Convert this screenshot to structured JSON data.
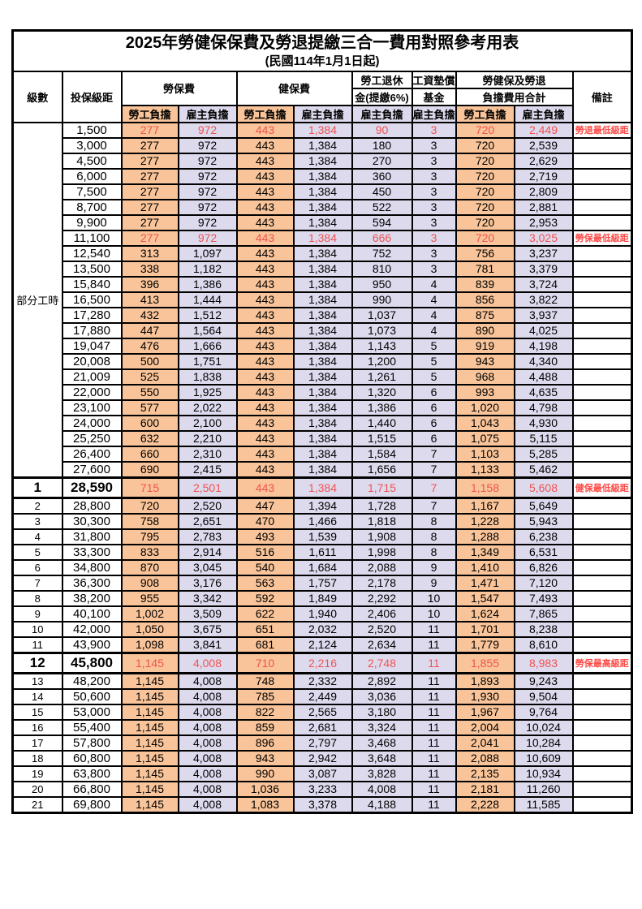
{
  "title": "2025年勞健保保費及勞退提繳三合一費用對照參考用表",
  "subtitle": "(民國114年1月1日起)",
  "colors": {
    "employee_fill": "#F9C499",
    "employer_fill": "#DEDAEE",
    "highlight_red": "#EF5350",
    "remark_red": "#FF4B47",
    "border": "#000000"
  },
  "header": {
    "level": "級數",
    "bracket": "投保級距",
    "labor_ins": "勞保費",
    "health_ins": "健保費",
    "pension_top": "勞工退休",
    "pension_bottom": "金(提繳6%)",
    "wage_fund_top": "工資墊償",
    "wage_fund_bottom": "基金",
    "total_top": "勞健保及勞退",
    "total_bottom": "負擔費用合計",
    "remark": "備註",
    "employee": "勞工負擔",
    "employer": "雇主負擔"
  },
  "part_time_label": "部分工時",
  "part_time_rowspan": 23,
  "rows": [
    {
      "level": null,
      "bracket": "1,500",
      "values": [
        "277",
        "972",
        "443",
        "1,384",
        "90",
        "3",
        "720",
        "2,449"
      ],
      "remark": "勞退最低級距",
      "style": "red"
    },
    {
      "level": null,
      "bracket": "3,000",
      "values": [
        "277",
        "972",
        "443",
        "1,384",
        "180",
        "3",
        "720",
        "2,539"
      ],
      "remark": "",
      "style": ""
    },
    {
      "level": null,
      "bracket": "4,500",
      "values": [
        "277",
        "972",
        "443",
        "1,384",
        "270",
        "3",
        "720",
        "2,629"
      ],
      "remark": "",
      "style": ""
    },
    {
      "level": null,
      "bracket": "6,000",
      "values": [
        "277",
        "972",
        "443",
        "1,384",
        "360",
        "3",
        "720",
        "2,719"
      ],
      "remark": "",
      "style": ""
    },
    {
      "level": null,
      "bracket": "7,500",
      "values": [
        "277",
        "972",
        "443",
        "1,384",
        "450",
        "3",
        "720",
        "2,809"
      ],
      "remark": "",
      "style": ""
    },
    {
      "level": null,
      "bracket": "8,700",
      "values": [
        "277",
        "972",
        "443",
        "1,384",
        "522",
        "3",
        "720",
        "2,881"
      ],
      "remark": "",
      "style": ""
    },
    {
      "level": null,
      "bracket": "9,900",
      "values": [
        "277",
        "972",
        "443",
        "1,384",
        "594",
        "3",
        "720",
        "2,953"
      ],
      "remark": "",
      "style": ""
    },
    {
      "level": null,
      "bracket": "11,100",
      "values": [
        "277",
        "972",
        "443",
        "1,384",
        "666",
        "3",
        "720",
        "3,025"
      ],
      "remark": "勞保最低級距",
      "style": "red"
    },
    {
      "level": null,
      "bracket": "12,540",
      "values": [
        "313",
        "1,097",
        "443",
        "1,384",
        "752",
        "3",
        "756",
        "3,237"
      ],
      "remark": "",
      "style": ""
    },
    {
      "level": null,
      "bracket": "13,500",
      "values": [
        "338",
        "1,182",
        "443",
        "1,384",
        "810",
        "3",
        "781",
        "3,379"
      ],
      "remark": "",
      "style": ""
    },
    {
      "level": null,
      "bracket": "15,840",
      "values": [
        "396",
        "1,386",
        "443",
        "1,384",
        "950",
        "4",
        "839",
        "3,724"
      ],
      "remark": "",
      "style": ""
    },
    {
      "level": null,
      "bracket": "16,500",
      "values": [
        "413",
        "1,444",
        "443",
        "1,384",
        "990",
        "4",
        "856",
        "3,822"
      ],
      "remark": "",
      "style": ""
    },
    {
      "level": null,
      "bracket": "17,280",
      "values": [
        "432",
        "1,512",
        "443",
        "1,384",
        "1,037",
        "4",
        "875",
        "3,937"
      ],
      "remark": "",
      "style": ""
    },
    {
      "level": null,
      "bracket": "17,880",
      "values": [
        "447",
        "1,564",
        "443",
        "1,384",
        "1,073",
        "4",
        "890",
        "4,025"
      ],
      "remark": "",
      "style": ""
    },
    {
      "level": null,
      "bracket": "19,047",
      "values": [
        "476",
        "1,666",
        "443",
        "1,384",
        "1,143",
        "5",
        "919",
        "4,198"
      ],
      "remark": "",
      "style": ""
    },
    {
      "level": null,
      "bracket": "20,008",
      "values": [
        "500",
        "1,751",
        "443",
        "1,384",
        "1,200",
        "5",
        "943",
        "4,340"
      ],
      "remark": "",
      "style": ""
    },
    {
      "level": null,
      "bracket": "21,009",
      "values": [
        "525",
        "1,838",
        "443",
        "1,384",
        "1,261",
        "5",
        "968",
        "4,488"
      ],
      "remark": "",
      "style": ""
    },
    {
      "level": null,
      "bracket": "22,000",
      "values": [
        "550",
        "1,925",
        "443",
        "1,384",
        "1,320",
        "6",
        "993",
        "4,635"
      ],
      "remark": "",
      "style": ""
    },
    {
      "level": null,
      "bracket": "23,100",
      "values": [
        "577",
        "2,022",
        "443",
        "1,384",
        "1,386",
        "6",
        "1,020",
        "4,798"
      ],
      "remark": "",
      "style": ""
    },
    {
      "level": null,
      "bracket": "24,000",
      "values": [
        "600",
        "2,100",
        "443",
        "1,384",
        "1,440",
        "6",
        "1,043",
        "4,930"
      ],
      "remark": "",
      "style": ""
    },
    {
      "level": null,
      "bracket": "25,250",
      "values": [
        "632",
        "2,210",
        "443",
        "1,384",
        "1,515",
        "6",
        "1,075",
        "5,115"
      ],
      "remark": "",
      "style": ""
    },
    {
      "level": null,
      "bracket": "26,400",
      "values": [
        "660",
        "2,310",
        "443",
        "1,384",
        "1,584",
        "7",
        "1,103",
        "5,285"
      ],
      "remark": "",
      "style": ""
    },
    {
      "level": null,
      "bracket": "27,600",
      "values": [
        "690",
        "2,415",
        "443",
        "1,384",
        "1,656",
        "7",
        "1,133",
        "5,462"
      ],
      "remark": "",
      "style": ""
    },
    {
      "level": "1",
      "bracket": "28,590",
      "values": [
        "715",
        "2,501",
        "443",
        "1,384",
        "1,715",
        "7",
        "1,158",
        "5,608"
      ],
      "remark": "健保最低級距",
      "style": "red emph"
    },
    {
      "level": "2",
      "bracket": "28,800",
      "values": [
        "720",
        "2,520",
        "447",
        "1,394",
        "1,728",
        "7",
        "1,167",
        "5,649"
      ],
      "remark": "",
      "style": ""
    },
    {
      "level": "3",
      "bracket": "30,300",
      "values": [
        "758",
        "2,651",
        "470",
        "1,466",
        "1,818",
        "8",
        "1,228",
        "5,943"
      ],
      "remark": "",
      "style": ""
    },
    {
      "level": "4",
      "bracket": "31,800",
      "values": [
        "795",
        "2,783",
        "493",
        "1,539",
        "1,908",
        "8",
        "1,288",
        "6,238"
      ],
      "remark": "",
      "style": ""
    },
    {
      "level": "5",
      "bracket": "33,300",
      "values": [
        "833",
        "2,914",
        "516",
        "1,611",
        "1,998",
        "8",
        "1,349",
        "6,531"
      ],
      "remark": "",
      "style": ""
    },
    {
      "level": "6",
      "bracket": "34,800",
      "values": [
        "870",
        "3,045",
        "540",
        "1,684",
        "2,088",
        "9",
        "1,410",
        "6,826"
      ],
      "remark": "",
      "style": ""
    },
    {
      "level": "7",
      "bracket": "36,300",
      "values": [
        "908",
        "3,176",
        "563",
        "1,757",
        "2,178",
        "9",
        "1,471",
        "7,120"
      ],
      "remark": "",
      "style": ""
    },
    {
      "level": "8",
      "bracket": "38,200",
      "values": [
        "955",
        "3,342",
        "592",
        "1,849",
        "2,292",
        "10",
        "1,547",
        "7,493"
      ],
      "remark": "",
      "style": ""
    },
    {
      "level": "9",
      "bracket": "40,100",
      "values": [
        "1,002",
        "3,509",
        "622",
        "1,940",
        "2,406",
        "10",
        "1,624",
        "7,865"
      ],
      "remark": "",
      "style": ""
    },
    {
      "level": "10",
      "bracket": "42,000",
      "values": [
        "1,050",
        "3,675",
        "651",
        "2,032",
        "2,520",
        "11",
        "1,701",
        "8,238"
      ],
      "remark": "",
      "style": ""
    },
    {
      "level": "11",
      "bracket": "43,900",
      "values": [
        "1,098",
        "3,841",
        "681",
        "2,124",
        "2,634",
        "11",
        "1,779",
        "8,610"
      ],
      "remark": "",
      "style": ""
    },
    {
      "level": "12",
      "bracket": "45,800",
      "values": [
        "1,145",
        "4,008",
        "710",
        "2,216",
        "2,748",
        "11",
        "1,855",
        "8,983"
      ],
      "remark": "勞保最高級距",
      "style": "red emph"
    },
    {
      "level": "13",
      "bracket": "48,200",
      "values": [
        "1,145",
        "4,008",
        "748",
        "2,332",
        "2,892",
        "11",
        "1,893",
        "9,243"
      ],
      "remark": "",
      "style": ""
    },
    {
      "level": "14",
      "bracket": "50,600",
      "values": [
        "1,145",
        "4,008",
        "785",
        "2,449",
        "3,036",
        "11",
        "1,930",
        "9,504"
      ],
      "remark": "",
      "style": ""
    },
    {
      "level": "15",
      "bracket": "53,000",
      "values": [
        "1,145",
        "4,008",
        "822",
        "2,565",
        "3,180",
        "11",
        "1,967",
        "9,764"
      ],
      "remark": "",
      "style": ""
    },
    {
      "level": "16",
      "bracket": "55,400",
      "values": [
        "1,145",
        "4,008",
        "859",
        "2,681",
        "3,324",
        "11",
        "2,004",
        "10,024"
      ],
      "remark": "",
      "style": ""
    },
    {
      "level": "17",
      "bracket": "57,800",
      "values": [
        "1,145",
        "4,008",
        "896",
        "2,797",
        "3,468",
        "11",
        "2,041",
        "10,284"
      ],
      "remark": "",
      "style": ""
    },
    {
      "level": "18",
      "bracket": "60,800",
      "values": [
        "1,145",
        "4,008",
        "943",
        "2,942",
        "3,648",
        "11",
        "2,088",
        "10,609"
      ],
      "remark": "",
      "style": ""
    },
    {
      "level": "19",
      "bracket": "63,800",
      "values": [
        "1,145",
        "4,008",
        "990",
        "3,087",
        "3,828",
        "11",
        "2,135",
        "10,934"
      ],
      "remark": "",
      "style": ""
    },
    {
      "level": "20",
      "bracket": "66,800",
      "values": [
        "1,145",
        "4,008",
        "1,036",
        "3,233",
        "4,008",
        "11",
        "2,181",
        "11,260"
      ],
      "remark": "",
      "style": ""
    },
    {
      "level": "21",
      "bracket": "69,800",
      "values": [
        "1,145",
        "4,008",
        "1,083",
        "3,378",
        "4,188",
        "11",
        "2,228",
        "11,585"
      ],
      "remark": "",
      "style": ""
    }
  ]
}
